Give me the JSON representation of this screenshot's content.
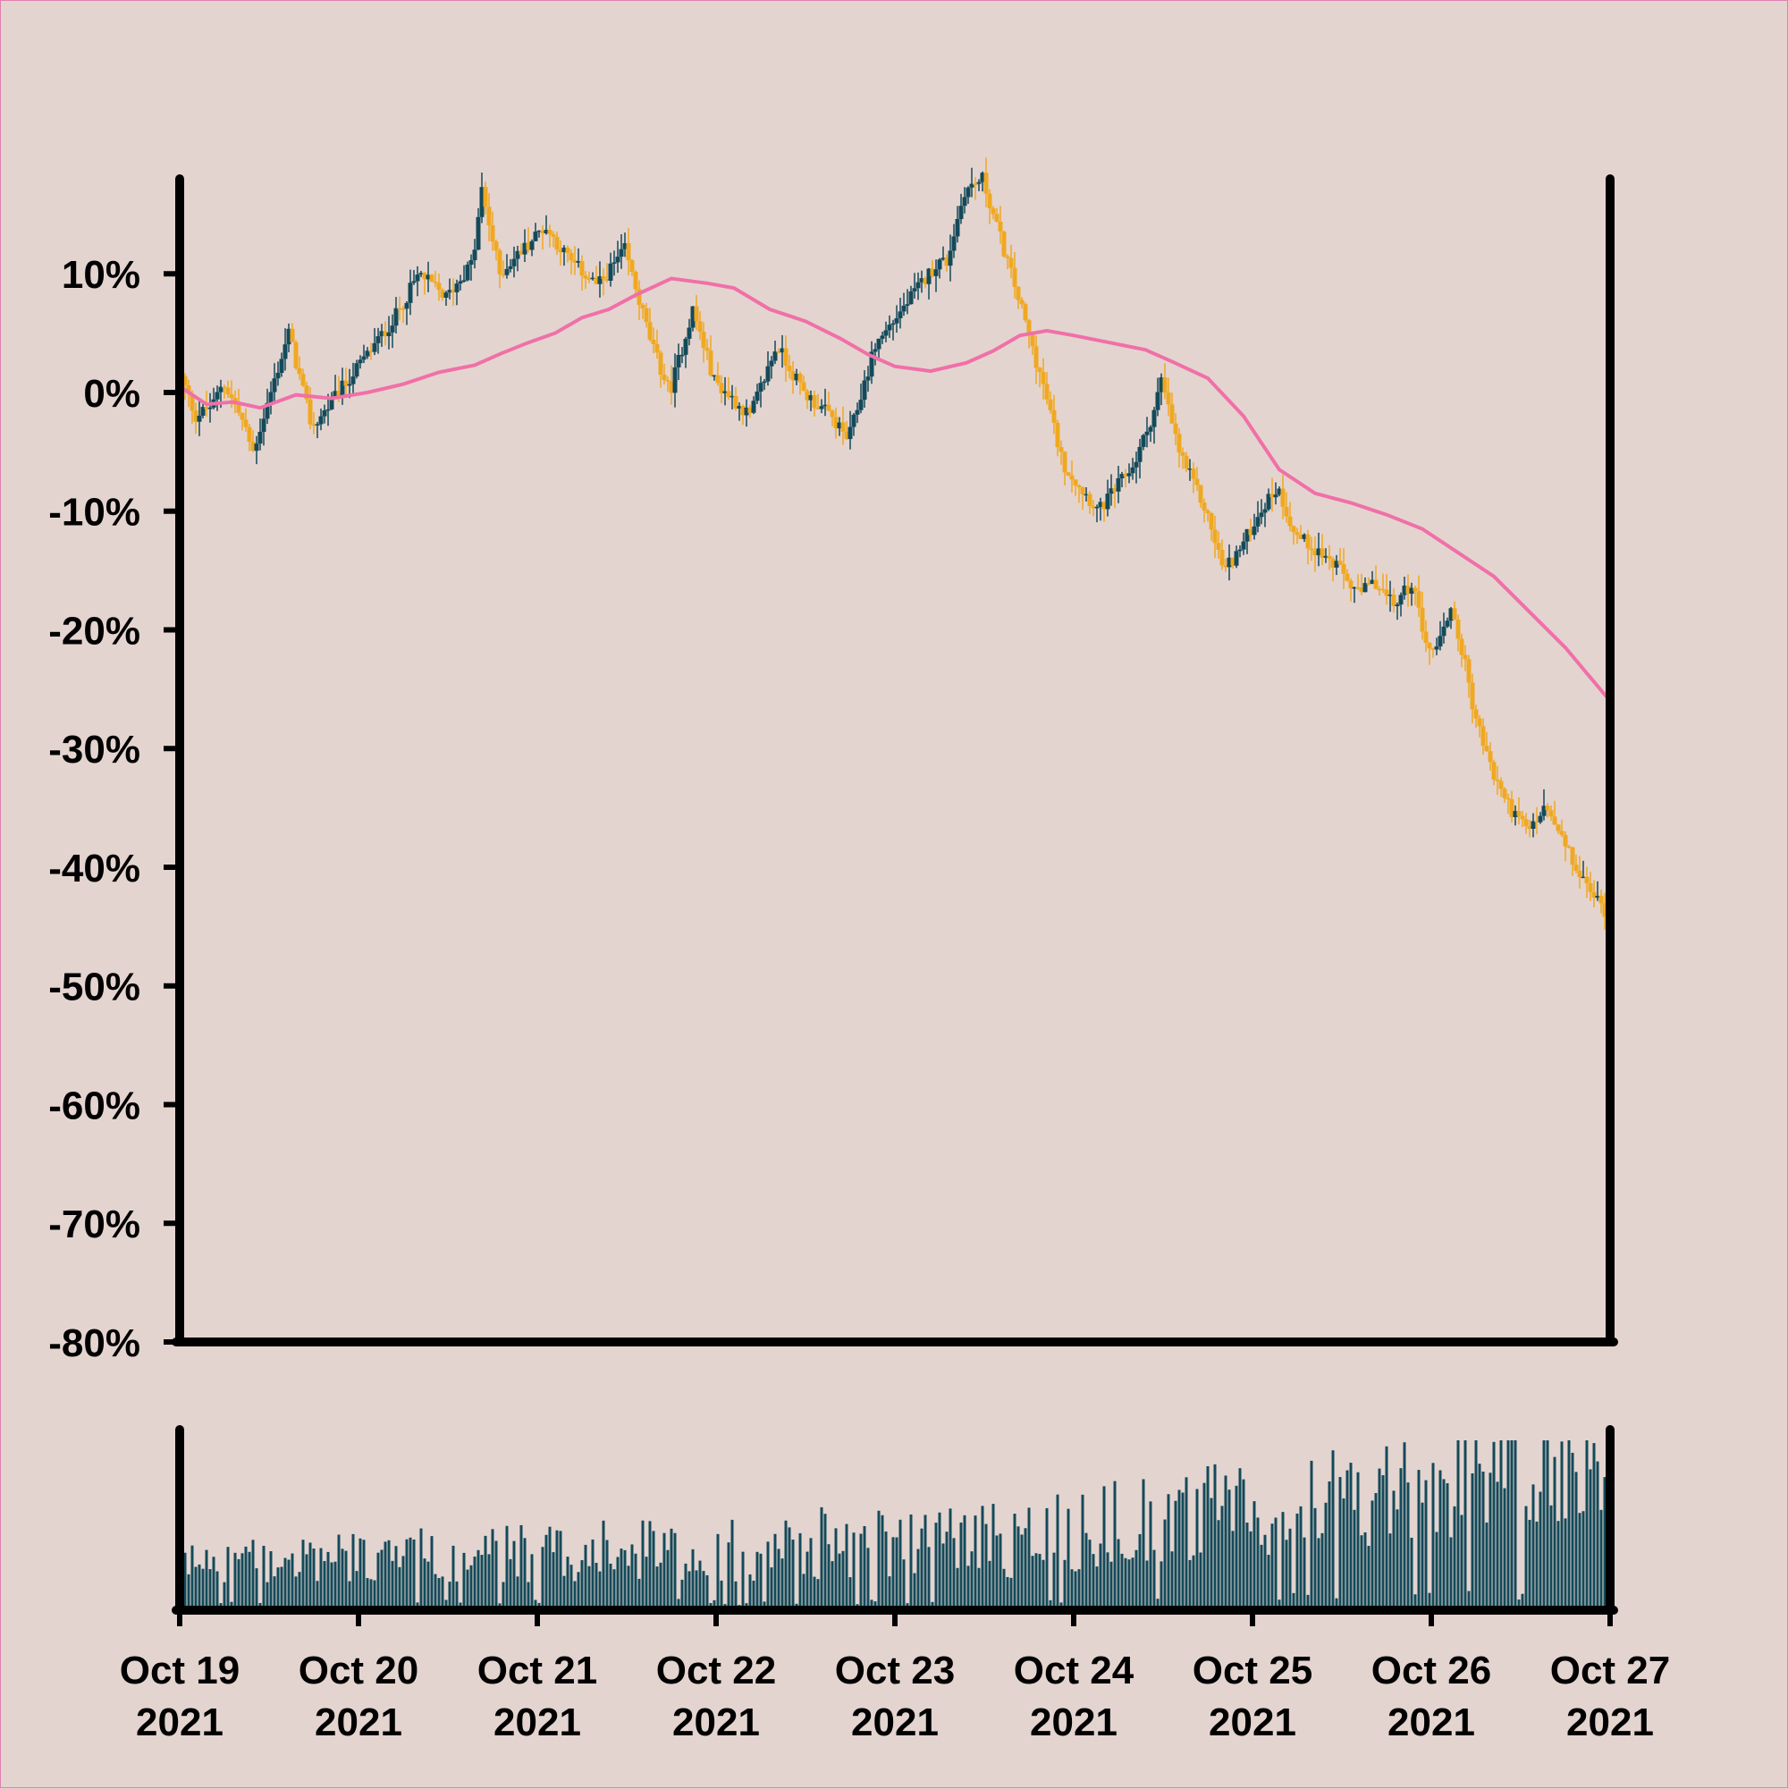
{
  "chart_data": {
    "type": "candlestick",
    "title": "",
    "xlabel": "",
    "ylabel": "",
    "ylim": [
      -80,
      18
    ],
    "y_ticks": [
      "10%",
      "0%",
      "-10%",
      "-20%",
      "-30%",
      "-40%",
      "-50%",
      "-60%",
      "-70%",
      "-80%"
    ],
    "y_tick_values": [
      10,
      0,
      -10,
      -20,
      -30,
      -40,
      -50,
      -60,
      -70,
      -80
    ],
    "x_ticks": [
      {
        "line1": "Oct 19",
        "line2": "2021"
      },
      {
        "line1": "Oct 20",
        "line2": "2021"
      },
      {
        "line1": "Oct 21",
        "line2": "2021"
      },
      {
        "line1": "Oct 22",
        "line2": "2021"
      },
      {
        "line1": "Oct 23",
        "line2": "2021"
      },
      {
        "line1": "Oct 24",
        "line2": "2021"
      },
      {
        "line1": "Oct 25",
        "line2": "2021"
      },
      {
        "line1": "Oct 26",
        "line2": "2021"
      },
      {
        "line1": "Oct 27",
        "line2": "2021"
      }
    ],
    "x_range_days": [
      0,
      8
    ],
    "grid": false,
    "up_color": "#134a5a",
    "down_color": "#f0a820",
    "ma_color": "#f070a8",
    "volume_color": "#134a5a",
    "price_path": [
      [
        0.0,
        2
      ],
      [
        0.1,
        -2
      ],
      [
        0.2,
        -1
      ],
      [
        0.25,
        1
      ],
      [
        0.35,
        -2
      ],
      [
        0.42,
        -5
      ],
      [
        0.62,
        5
      ],
      [
        0.75,
        -3
      ],
      [
        0.8,
        -2
      ],
      [
        1.05,
        3
      ],
      [
        1.2,
        6
      ],
      [
        1.35,
        10
      ],
      [
        1.5,
        8
      ],
      [
        1.65,
        11
      ],
      [
        1.7,
        17
      ],
      [
        1.8,
        10
      ],
      [
        2.05,
        14
      ],
      [
        2.2,
        11
      ],
      [
        2.35,
        9
      ],
      [
        2.5,
        12
      ],
      [
        2.65,
        4
      ],
      [
        2.75,
        0
      ],
      [
        2.88,
        7
      ],
      [
        3.0,
        1
      ],
      [
        3.2,
        -2
      ],
      [
        3.35,
        4
      ],
      [
        3.5,
        0
      ],
      [
        3.65,
        -2
      ],
      [
        3.75,
        -4
      ],
      [
        3.9,
        4
      ],
      [
        4.1,
        8
      ],
      [
        4.25,
        11
      ],
      [
        4.3,
        11
      ],
      [
        4.4,
        17
      ],
      [
        4.5,
        18
      ],
      [
        4.7,
        8
      ],
      [
        4.85,
        0
      ],
      [
        4.95,
        -6
      ],
      [
        5.05,
        -8
      ],
      [
        5.15,
        -10
      ],
      [
        5.25,
        -8
      ],
      [
        5.35,
        -6
      ],
      [
        5.45,
        -2
      ],
      [
        5.5,
        1
      ],
      [
        5.6,
        -5
      ],
      [
        5.75,
        -10
      ],
      [
        5.85,
        -15
      ],
      [
        5.95,
        -13
      ],
      [
        6.05,
        -10
      ],
      [
        6.15,
        -8
      ],
      [
        6.25,
        -12
      ],
      [
        6.35,
        -13
      ],
      [
        6.5,
        -15
      ],
      [
        6.6,
        -17
      ],
      [
        6.7,
        -16
      ],
      [
        6.8,
        -18
      ],
      [
        6.9,
        -16
      ],
      [
        7.0,
        -22
      ],
      [
        7.08,
        -20
      ],
      [
        7.12,
        -18
      ],
      [
        7.2,
        -23
      ],
      [
        7.25,
        -27
      ],
      [
        7.35,
        -32
      ],
      [
        7.45,
        -35
      ],
      [
        7.55,
        -37
      ],
      [
        7.65,
        -35
      ],
      [
        7.75,
        -38
      ],
      [
        7.85,
        -41
      ],
      [
        8.0,
        -44
      ]
    ],
    "moving_average": [
      [
        0.0,
        0.5
      ],
      [
        0.15,
        -1
      ],
      [
        0.3,
        -0.8
      ],
      [
        0.45,
        -1.3
      ],
      [
        0.65,
        -0.2
      ],
      [
        0.85,
        -0.5
      ],
      [
        1.05,
        0
      ],
      [
        1.25,
        0.7
      ],
      [
        1.45,
        1.7
      ],
      [
        1.65,
        2.3
      ],
      [
        1.8,
        3.3
      ],
      [
        1.95,
        4.2
      ],
      [
        2.1,
        5.0
      ],
      [
        2.25,
        6.3
      ],
      [
        2.4,
        7.0
      ],
      [
        2.55,
        8.2
      ],
      [
        2.75,
        9.6
      ],
      [
        2.95,
        9.2
      ],
      [
        3.1,
        8.8
      ],
      [
        3.3,
        7.0
      ],
      [
        3.5,
        6.0
      ],
      [
        3.7,
        4.5
      ],
      [
        3.85,
        3.2
      ],
      [
        4.0,
        2.2
      ],
      [
        4.2,
        1.8
      ],
      [
        4.4,
        2.5
      ],
      [
        4.55,
        3.5
      ],
      [
        4.7,
        4.8
      ],
      [
        4.85,
        5.2
      ],
      [
        5.0,
        4.8
      ],
      [
        5.2,
        4.2
      ],
      [
        5.4,
        3.6
      ],
      [
        5.55,
        2.6
      ],
      [
        5.75,
        1.2
      ],
      [
        5.95,
        -2.0
      ],
      [
        6.15,
        -6.5
      ],
      [
        6.35,
        -8.5
      ],
      [
        6.55,
        -9.3
      ],
      [
        6.75,
        -10.3
      ],
      [
        6.95,
        -11.5
      ],
      [
        7.15,
        -13.5
      ],
      [
        7.35,
        -15.5
      ],
      [
        7.55,
        -18.5
      ],
      [
        7.75,
        -21.5
      ],
      [
        8.0,
        -26.0
      ]
    ]
  }
}
